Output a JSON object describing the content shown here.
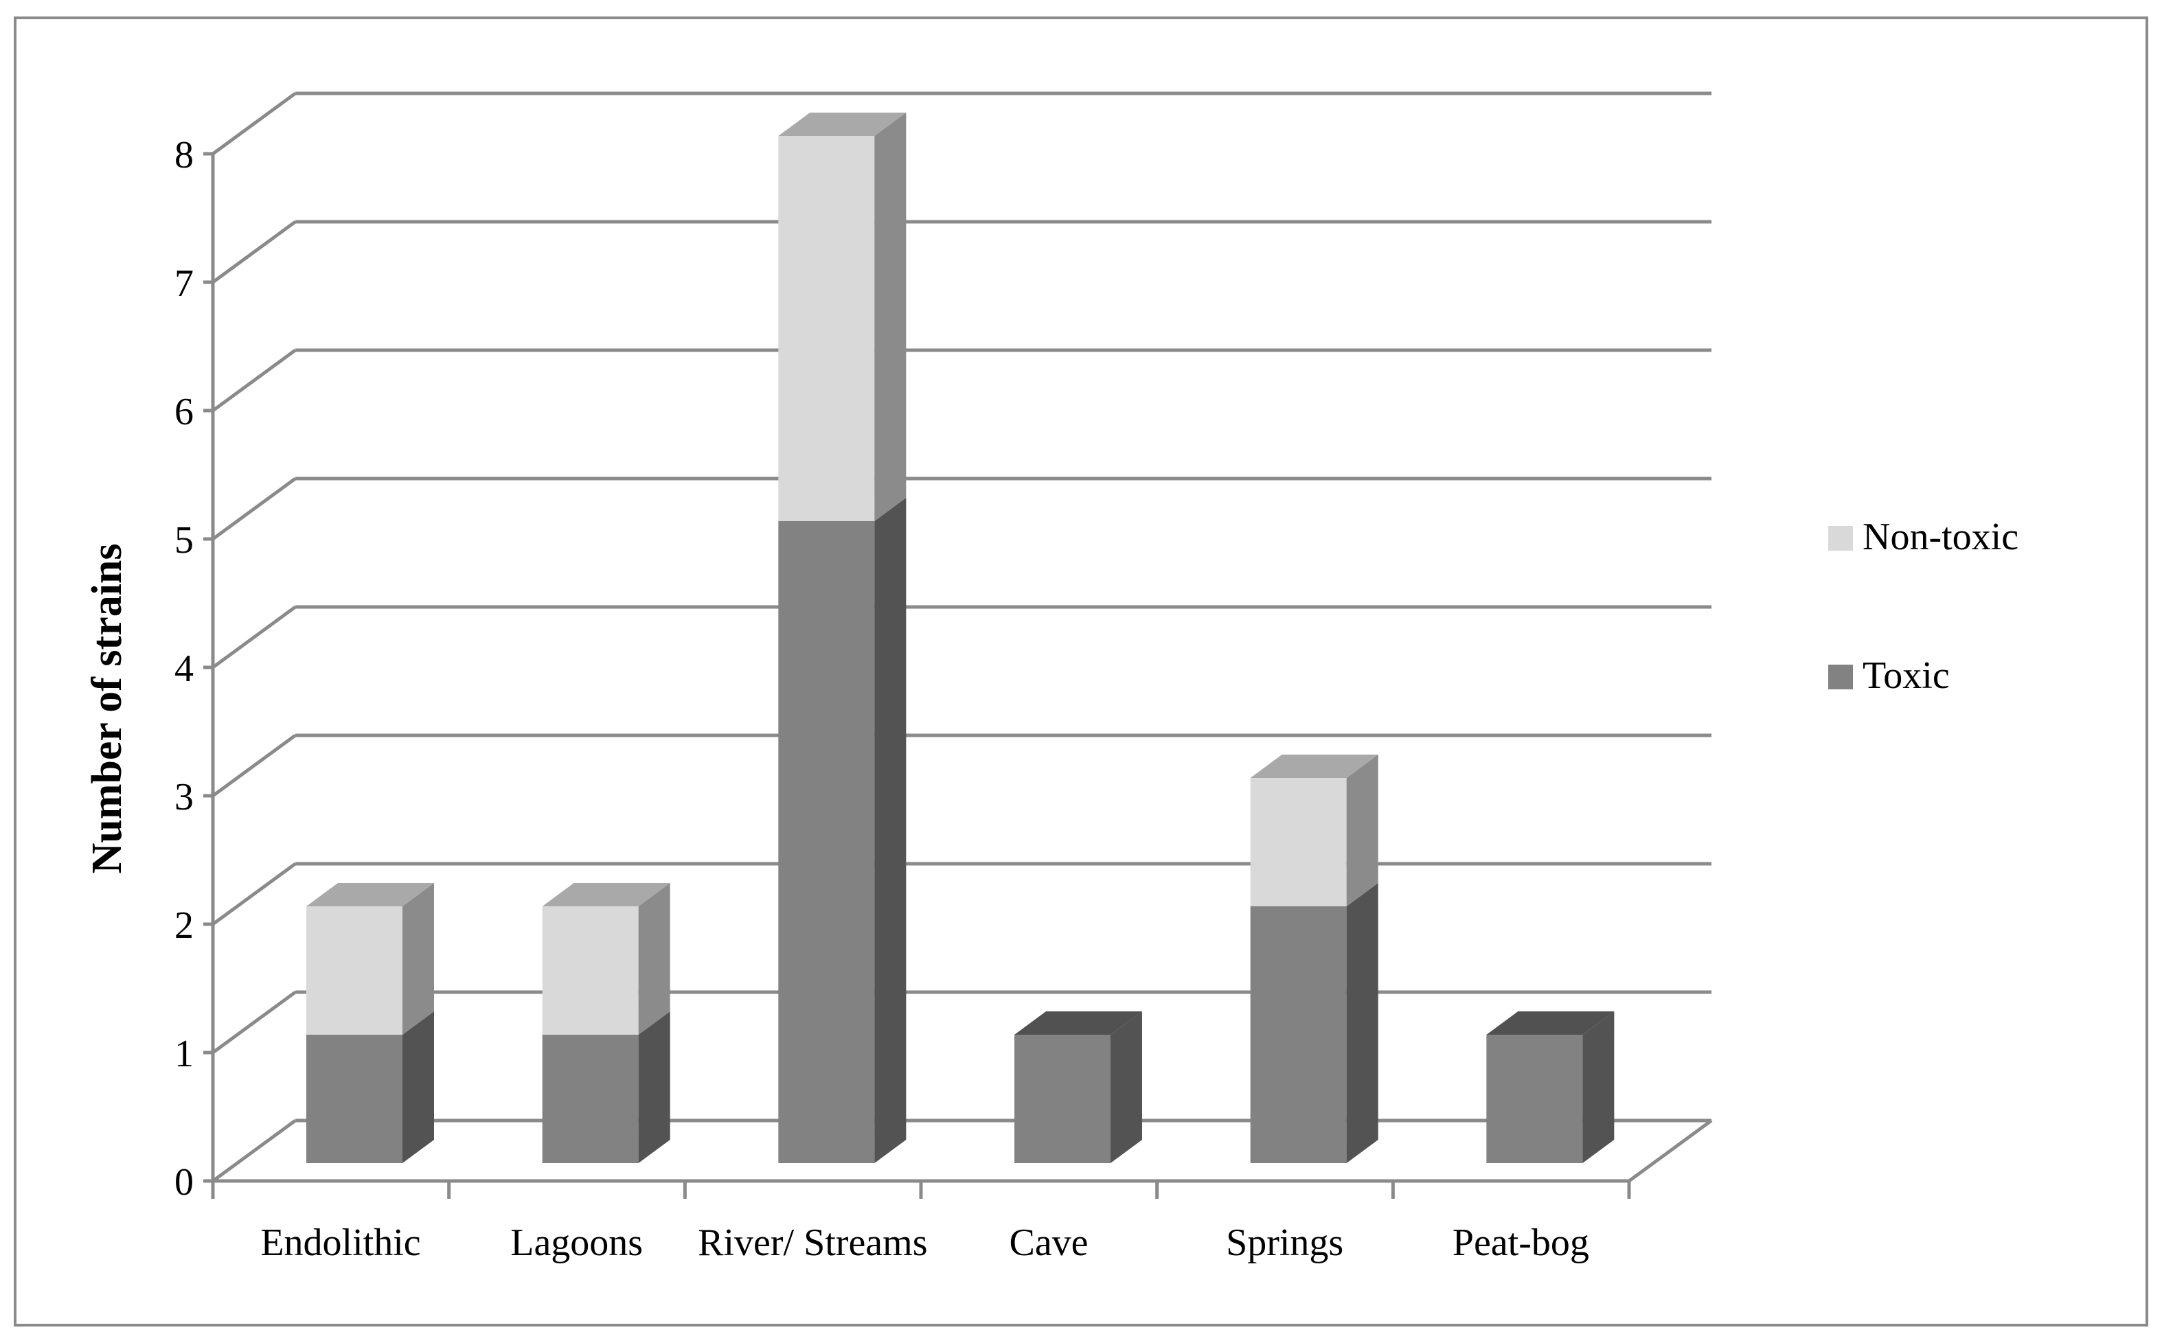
{
  "chart_data": {
    "type": "bar",
    "stacked": true,
    "three_d": true,
    "title": "",
    "xlabel": "",
    "ylabel": "Number of strains",
    "ylim": [
      0,
      8
    ],
    "yticks": [
      "0",
      "1",
      "2",
      "3",
      "4",
      "5",
      "6",
      "7",
      "8"
    ],
    "grid": true,
    "legend_position": "right",
    "categories": [
      "Endolithic",
      "Lagoons",
      "River/ Streams",
      "Cave",
      "Springs",
      "Peat-bog"
    ],
    "series": [
      {
        "name": "Toxic",
        "values": [
          1,
          1,
          5,
          1,
          2,
          1
        ],
        "color": "#828282"
      },
      {
        "name": "Non-toxic",
        "values": [
          1,
          1,
          3,
          0,
          1,
          0
        ],
        "color": "#d9d9d9"
      }
    ],
    "legend": [
      {
        "name": "Non-toxic",
        "color": "#d9d9d9"
      },
      {
        "name": "Toxic",
        "color": "#828282"
      }
    ]
  }
}
